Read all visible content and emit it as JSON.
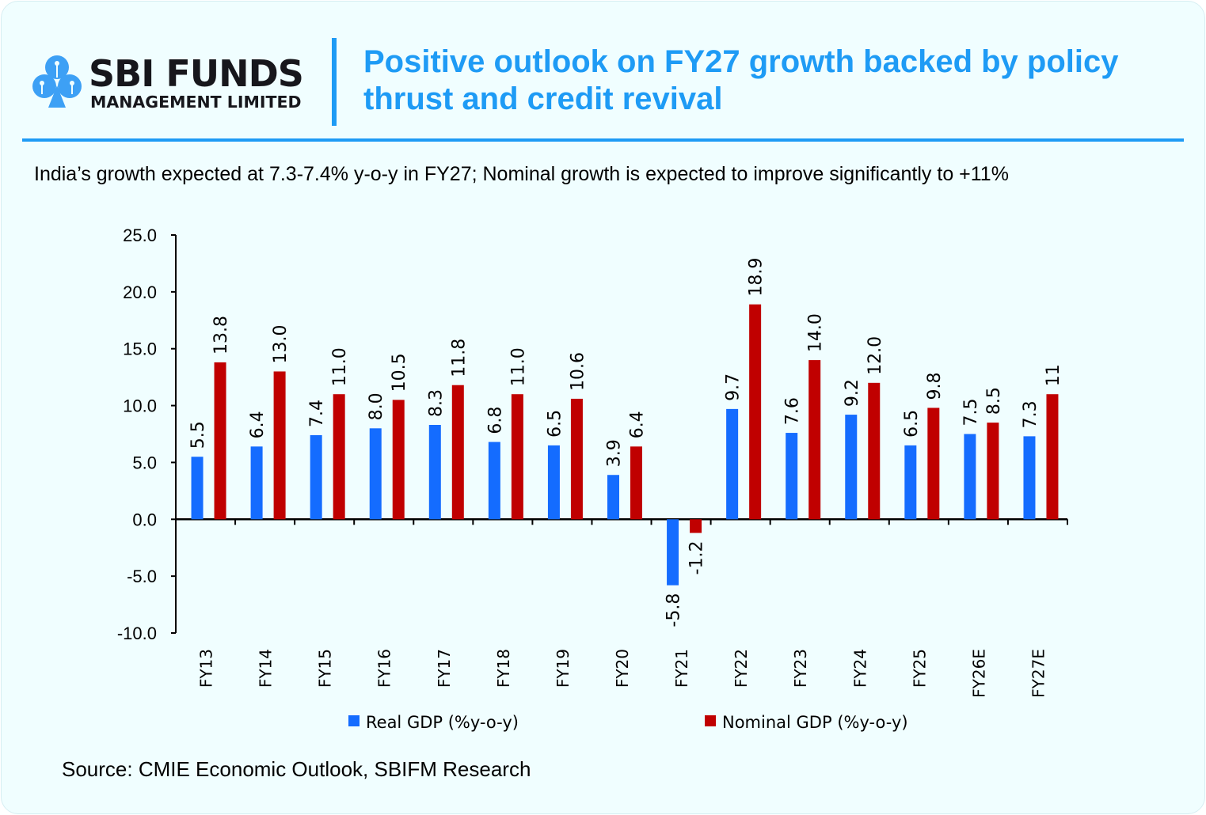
{
  "header": {
    "brand_line1": "SBI FUNDS",
    "brand_line2": "MANAGEMENT LIMITED",
    "title_line1": "Positive outlook on FY27 growth backed by policy",
    "title_line2": "thrust and credit revival",
    "accent_color": "#1e9bf5"
  },
  "subtitle": "India’s growth expected at 7.3-7.4% y-o-y in FY27; Nominal growth is expected to improve significantly to +11%",
  "source": "Source: CMIE Economic Outlook, SBIFM Research",
  "chart_data": {
    "type": "bar",
    "categories": [
      "FY13",
      "FY14",
      "FY15",
      "FY16",
      "FY17",
      "FY18",
      "FY19",
      "FY20",
      "FY21",
      "FY22",
      "FY23",
      "FY24",
      "FY25",
      "FY26E",
      "FY27E"
    ],
    "series": [
      {
        "name": "Real GDP (%y-o-y)",
        "color": "#146cff",
        "values": [
          5.5,
          6.4,
          7.4,
          8.0,
          8.3,
          6.8,
          6.5,
          3.9,
          -5.8,
          9.7,
          7.6,
          9.2,
          6.5,
          7.5,
          7.3
        ],
        "labels": [
          "5.5",
          "6.4",
          "7.4",
          "8.0",
          "8.3",
          "6.8",
          "6.5",
          "3.9",
          "-5.8",
          "9.7",
          "7.6",
          "9.2",
          "6.5",
          "7.5",
          "7.3"
        ]
      },
      {
        "name": "Nominal GDP (%y-o-y)",
        "color": "#c00000",
        "values": [
          13.8,
          13.0,
          11.0,
          10.5,
          11.8,
          11.0,
          10.6,
          6.4,
          -1.2,
          18.9,
          14.0,
          12.0,
          9.8,
          8.5,
          11
        ],
        "labels": [
          "13.8",
          "13.0",
          "11.0",
          "10.5",
          "11.8",
          "11.0",
          "10.6",
          "6.4",
          "-1.2",
          "18.9",
          "14.0",
          "12.0",
          "9.8",
          "8.5",
          "11"
        ]
      }
    ],
    "yticks": [
      "25.0",
      "20.0",
      "15.0",
      "10.0",
      "5.0",
      "0.0",
      "-5.0",
      "-10.0"
    ],
    "ylim": [
      -10,
      25
    ],
    "grid": false,
    "legend": "bottom"
  }
}
